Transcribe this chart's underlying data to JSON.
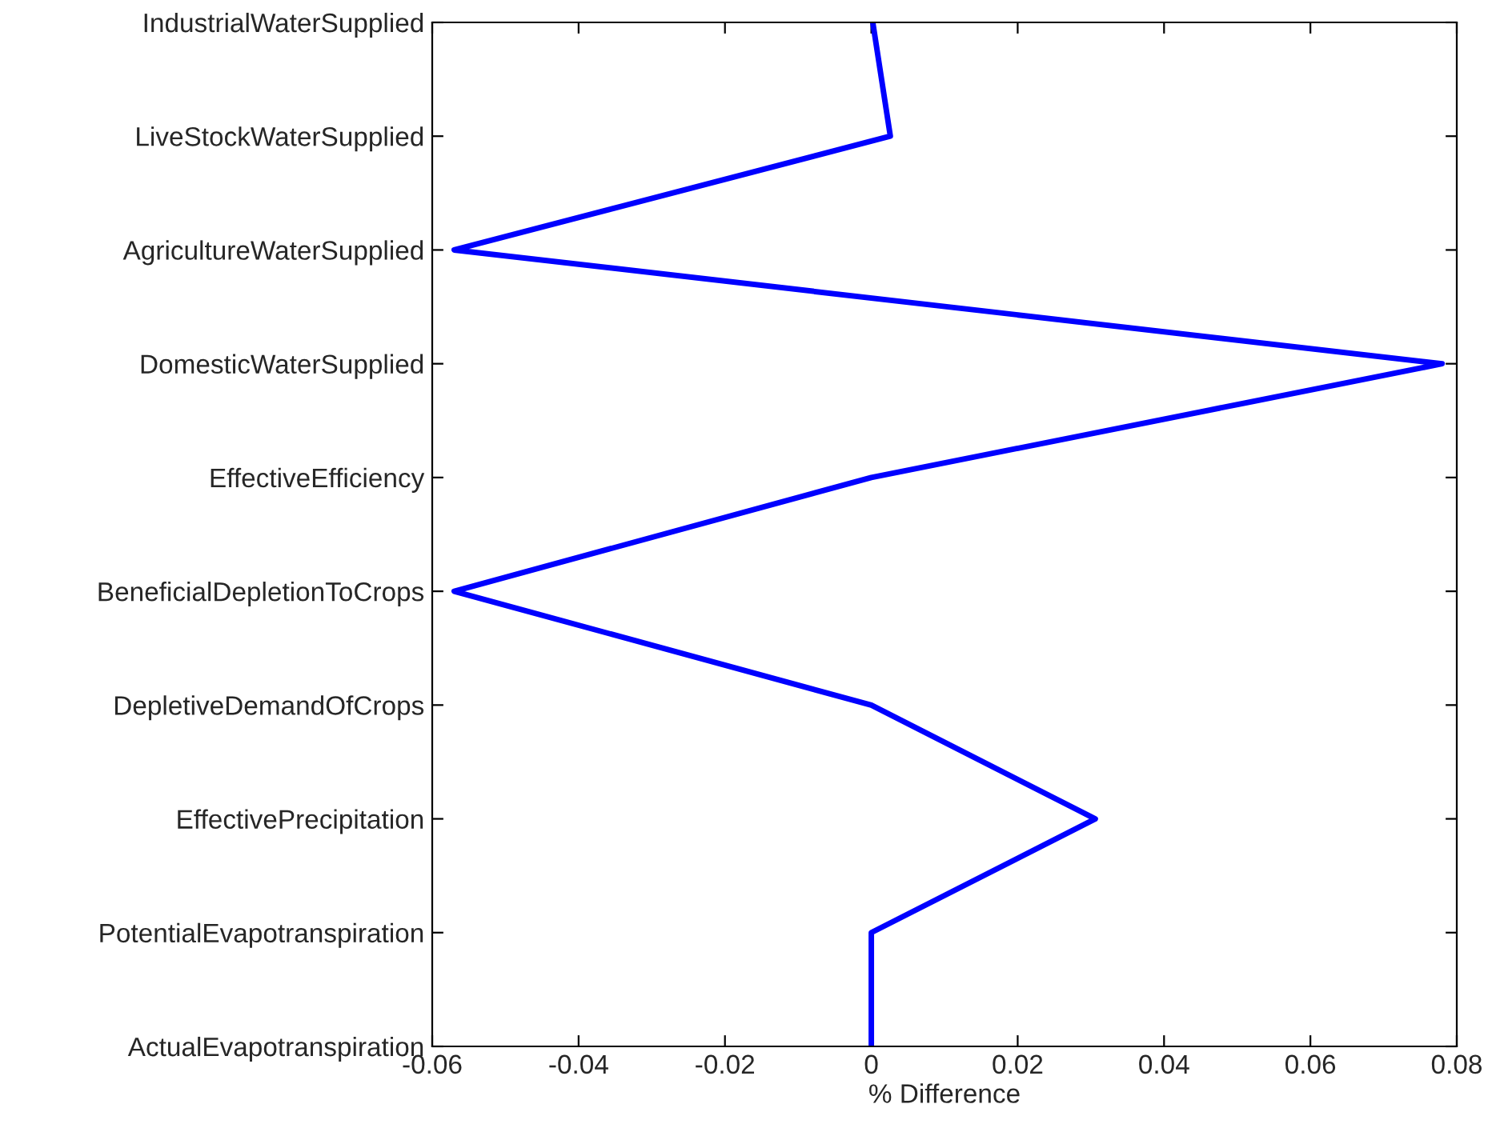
{
  "chart_data": {
    "type": "line",
    "orientation": "horizontal",
    "xlabel": "% Difference",
    "categories": [
      "IndustrialWaterSupplied",
      "LiveStockWaterSupplied",
      "AgricultureWaterSupplied",
      "DomesticWaterSupplied",
      "EffectiveEfficiency",
      "BeneficialDepletionToCrops",
      "DepletiveDemandOfCrops",
      "EffectivePrecipitation",
      "PotentialEvapotranspiration",
      "ActualEvapotranspiration"
    ],
    "series": [
      {
        "color": "#0000ff",
        "values": [
          0.0002,
          0.0026,
          -0.057,
          0.078,
          0.0,
          -0.057,
          0.0,
          0.0306,
          0.0,
          0.0
        ]
      }
    ],
    "xlim": [
      -0.06,
      0.08
    ],
    "xticks": [
      -0.06,
      -0.04,
      -0.02,
      0,
      0.02,
      0.04,
      0.06,
      0.08
    ],
    "grid": false,
    "marker": "none",
    "line_style": "solid"
  }
}
